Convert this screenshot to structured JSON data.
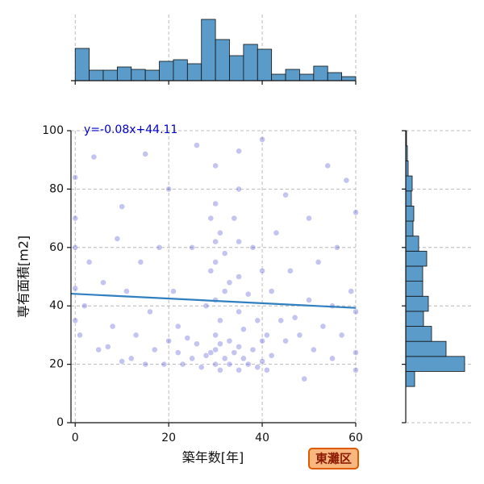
{
  "chart_data": [
    {
      "type": "scatter",
      "xlabel": "築年数[年]",
      "ylabel": "専有面積[m2]",
      "x": [
        0,
        0,
        0,
        0,
        0,
        1,
        2,
        3,
        4,
        5,
        6,
        7,
        8,
        9,
        10,
        10,
        11,
        12,
        13,
        14,
        15,
        15,
        16,
        17,
        18,
        19,
        20,
        20,
        21,
        22,
        22,
        23,
        24,
        25,
        25,
        26,
        26,
        27,
        28,
        28,
        29,
        29,
        29,
        30,
        30,
        30,
        30,
        30,
        30,
        30,
        30,
        31,
        31,
        31,
        31,
        32,
        32,
        32,
        33,
        33,
        33,
        34,
        34,
        35,
        35,
        35,
        35,
        35,
        35,
        35,
        36,
        36,
        37,
        37,
        38,
        38,
        39,
        39,
        40,
        40,
        40,
        40,
        41,
        41,
        42,
        42,
        43,
        44,
        45,
        45,
        46,
        47,
        48,
        49,
        50,
        50,
        51,
        52,
        53,
        54,
        55,
        55,
        56,
        57,
        58,
        59,
        60,
        60,
        60,
        60
      ],
      "y": [
        35,
        46,
        70,
        84,
        60,
        30,
        40,
        55,
        91,
        25,
        48,
        26,
        33,
        63,
        21,
        74,
        45,
        22,
        30,
        55,
        92,
        20,
        38,
        25,
        60,
        20,
        28,
        80,
        45,
        24,
        33,
        20,
        29,
        60,
        22,
        95,
        27,
        19,
        23,
        40,
        70,
        24,
        52,
        20,
        25,
        30,
        42,
        55,
        62,
        75,
        88,
        18,
        27,
        35,
        65,
        22,
        45,
        58,
        20,
        28,
        48,
        24,
        70,
        18,
        26,
        38,
        50,
        62,
        80,
        93,
        22,
        32,
        20,
        44,
        25,
        60,
        19,
        35,
        21,
        28,
        52,
        97,
        18,
        30,
        23,
        45,
        65,
        35,
        78,
        28,
        52,
        36,
        30,
        15,
        42,
        70,
        25,
        55,
        33,
        88,
        40,
        22,
        60,
        30,
        83,
        45,
        24,
        18,
        72,
        38
      ],
      "color": "#3b3bd0",
      "xlim": [
        -0.9,
        60
      ],
      "ylim": [
        0,
        100
      ],
      "xticks": [
        0,
        20,
        40,
        60
      ],
      "yticks": [
        0,
        20,
        40,
        60,
        80,
        100
      ],
      "grid": true,
      "regression": {
        "label": "y=-0.08x+44.11",
        "slope": -0.08,
        "intercept": 44.11,
        "color": "#2f7fc1"
      },
      "annotation": "東灘区"
    },
    {
      "type": "histogram",
      "orientation": "vertical",
      "bins": [
        0,
        3,
        6,
        9,
        12,
        15,
        18,
        21,
        24,
        27,
        30,
        33,
        36,
        39,
        42,
        45,
        48,
        51,
        54,
        57,
        60
      ],
      "values": [
        40,
        13,
        13,
        17,
        14,
        13,
        24,
        26,
        21,
        76,
        51,
        31,
        45,
        39,
        8,
        14,
        8,
        18,
        10,
        5
      ],
      "color": "#5a9bc9",
      "xlim": [
        -0.9,
        60
      ],
      "ylim": [
        0,
        82
      ],
      "xticks": [
        0,
        20,
        40,
        60
      ],
      "grid": true
    },
    {
      "type": "histogram",
      "orientation": "horizontal",
      "bins": [
        12.4,
        17.55,
        22.7,
        27.85,
        33,
        38.15,
        43.3,
        48.45,
        53.6,
        58.75,
        63.9,
        69.05,
        74.2,
        79.35,
        84.5,
        89.65,
        94.8,
        100
      ],
      "values": [
        11,
        73,
        50,
        32,
        22,
        28,
        21,
        21,
        26,
        16,
        9,
        10,
        7,
        8,
        3,
        2,
        1
      ],
      "color": "#5a9bc9",
      "xlim": [
        0,
        82
      ],
      "ylim": [
        0,
        100
      ],
      "yticks": [
        0,
        20,
        40,
        60,
        80,
        100
      ],
      "grid": true
    }
  ]
}
